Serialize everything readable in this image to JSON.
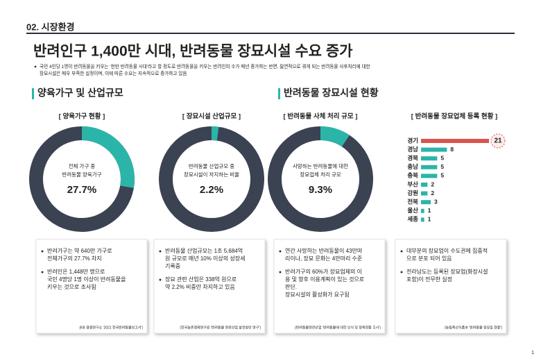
{
  "header": {
    "section": "02. 시장환경",
    "title": "반려인구 1,400만 시대, 반려동물 장묘시설 수요 증가",
    "summary": [
      "국민 4인당 1명이 반려동물을 키우는 '천만 반려동물 시대'라고 할 정도로 반려동물을 키우는 반려인의 수가 매년 증가하는 반면, 필연적으로 겪게 되는 반려동물 사후처리에 대한",
      "장묘시설은 매우 부족한 실정이며, 이에 따른 수요는 지속적으로 증가하고 있음"
    ]
  },
  "sections": [
    "양육가구 및 산업규모",
    "반려동물 장묘시설 현황"
  ],
  "panels": [
    {
      "title": "[ 양육가구 현황 ]",
      "donut": {
        "lines": [
          "전체 가구 중",
          "반려동물 양육가구"
        ],
        "value": 27.7,
        "value_label": "27.7%",
        "color": "#2bb5a8",
        "rest_color": "#3b4252"
      },
      "bullets": [
        [
          "반려가구는 약 640만 가구로",
          "전체가구의 27.7% 차지"
        ],
        [
          "반려인은 1,448만 명으로",
          "국민 4명당 1명 이상이 반려동물을",
          "키우는 것으로 조사됨"
        ]
      ],
      "source": "(KB 경영연구소 '2021 한국반려동물보고서')"
    },
    {
      "title": "[ 장묘시설 산업규모 ]",
      "donut": {
        "lines": [
          "반려동물 산업규모 중",
          "장묘시설이 차지하는 비율"
        ],
        "value": 2.2,
        "value_label": "2.2%",
        "color": "#2bb5a8",
        "rest_color": "#3b4252"
      },
      "bullets": [
        [
          "반려동물 산업규모는 1조 5,684억",
          "원 규모로 매년 10% 이상의 성장세",
          "기록중"
        ],
        [
          "장묘 관련 산업은 338억 원으로",
          "약 2.2% 비중만 차지하고 있음"
        ]
      ],
      "source": "(한국농촌경제연구원 '반려동물 연관산업 발전방안 연구')"
    },
    {
      "title": "[ 반려동물 사체 처리 규모 ]",
      "donut": {
        "lines": [
          "사망하는 반려동물에 대한",
          "장묘업체 처리 규모"
        ],
        "value": 9.3,
        "value_label": "9.3%",
        "color": "#2bb5a8",
        "rest_color": "#3b4252"
      },
      "bullets": [
        [
          "연간 사망하는 반려동물이 43만마",
          "리이나, 장묘 문화는 4만마리 수준"
        ],
        [
          "반려가구의 60%가 장묘업체의 이",
          "용 및 향후 이용계획이 있는 것으로",
          "판단.",
          "장묘시설의 활성화가 요구됨"
        ]
      ],
      "source": "(반려동물연관산업 '반려동물에 대한 인식 및 양육현황 조사')"
    },
    {
      "title": "[ 반려동물 장묘업체 등록 현황 ]",
      "bar_chart": {
        "type": "bar",
        "categories": [
          "경기",
          "경남",
          "경북",
          "충남",
          "충북",
          "부산",
          "강원",
          "전북",
          "울산",
          "세종"
        ],
        "values": [
          21,
          8,
          5,
          5,
          5,
          2,
          2,
          3,
          1,
          1
        ],
        "colors": [
          "#d9534f",
          "#2bb5a8",
          "#2bb5a8",
          "#2bb5a8",
          "#2bb5a8",
          "#2bb5a8",
          "#2bb5a8",
          "#2bb5a8",
          "#2bb5a8",
          "#2bb5a8"
        ]
      },
      "bullets": [
        [
          "대부분의 장묘업이 수도권에 집중적",
          "으로 분포 되어 있음"
        ],
        [
          "전라남도는 등록된 장묘업(화장시설",
          "포함)이 전무한 실정"
        ]
      ],
      "source": "(농림축산식품부 '반려동물 장묘업 현황')"
    }
  ],
  "page_number": "1"
}
